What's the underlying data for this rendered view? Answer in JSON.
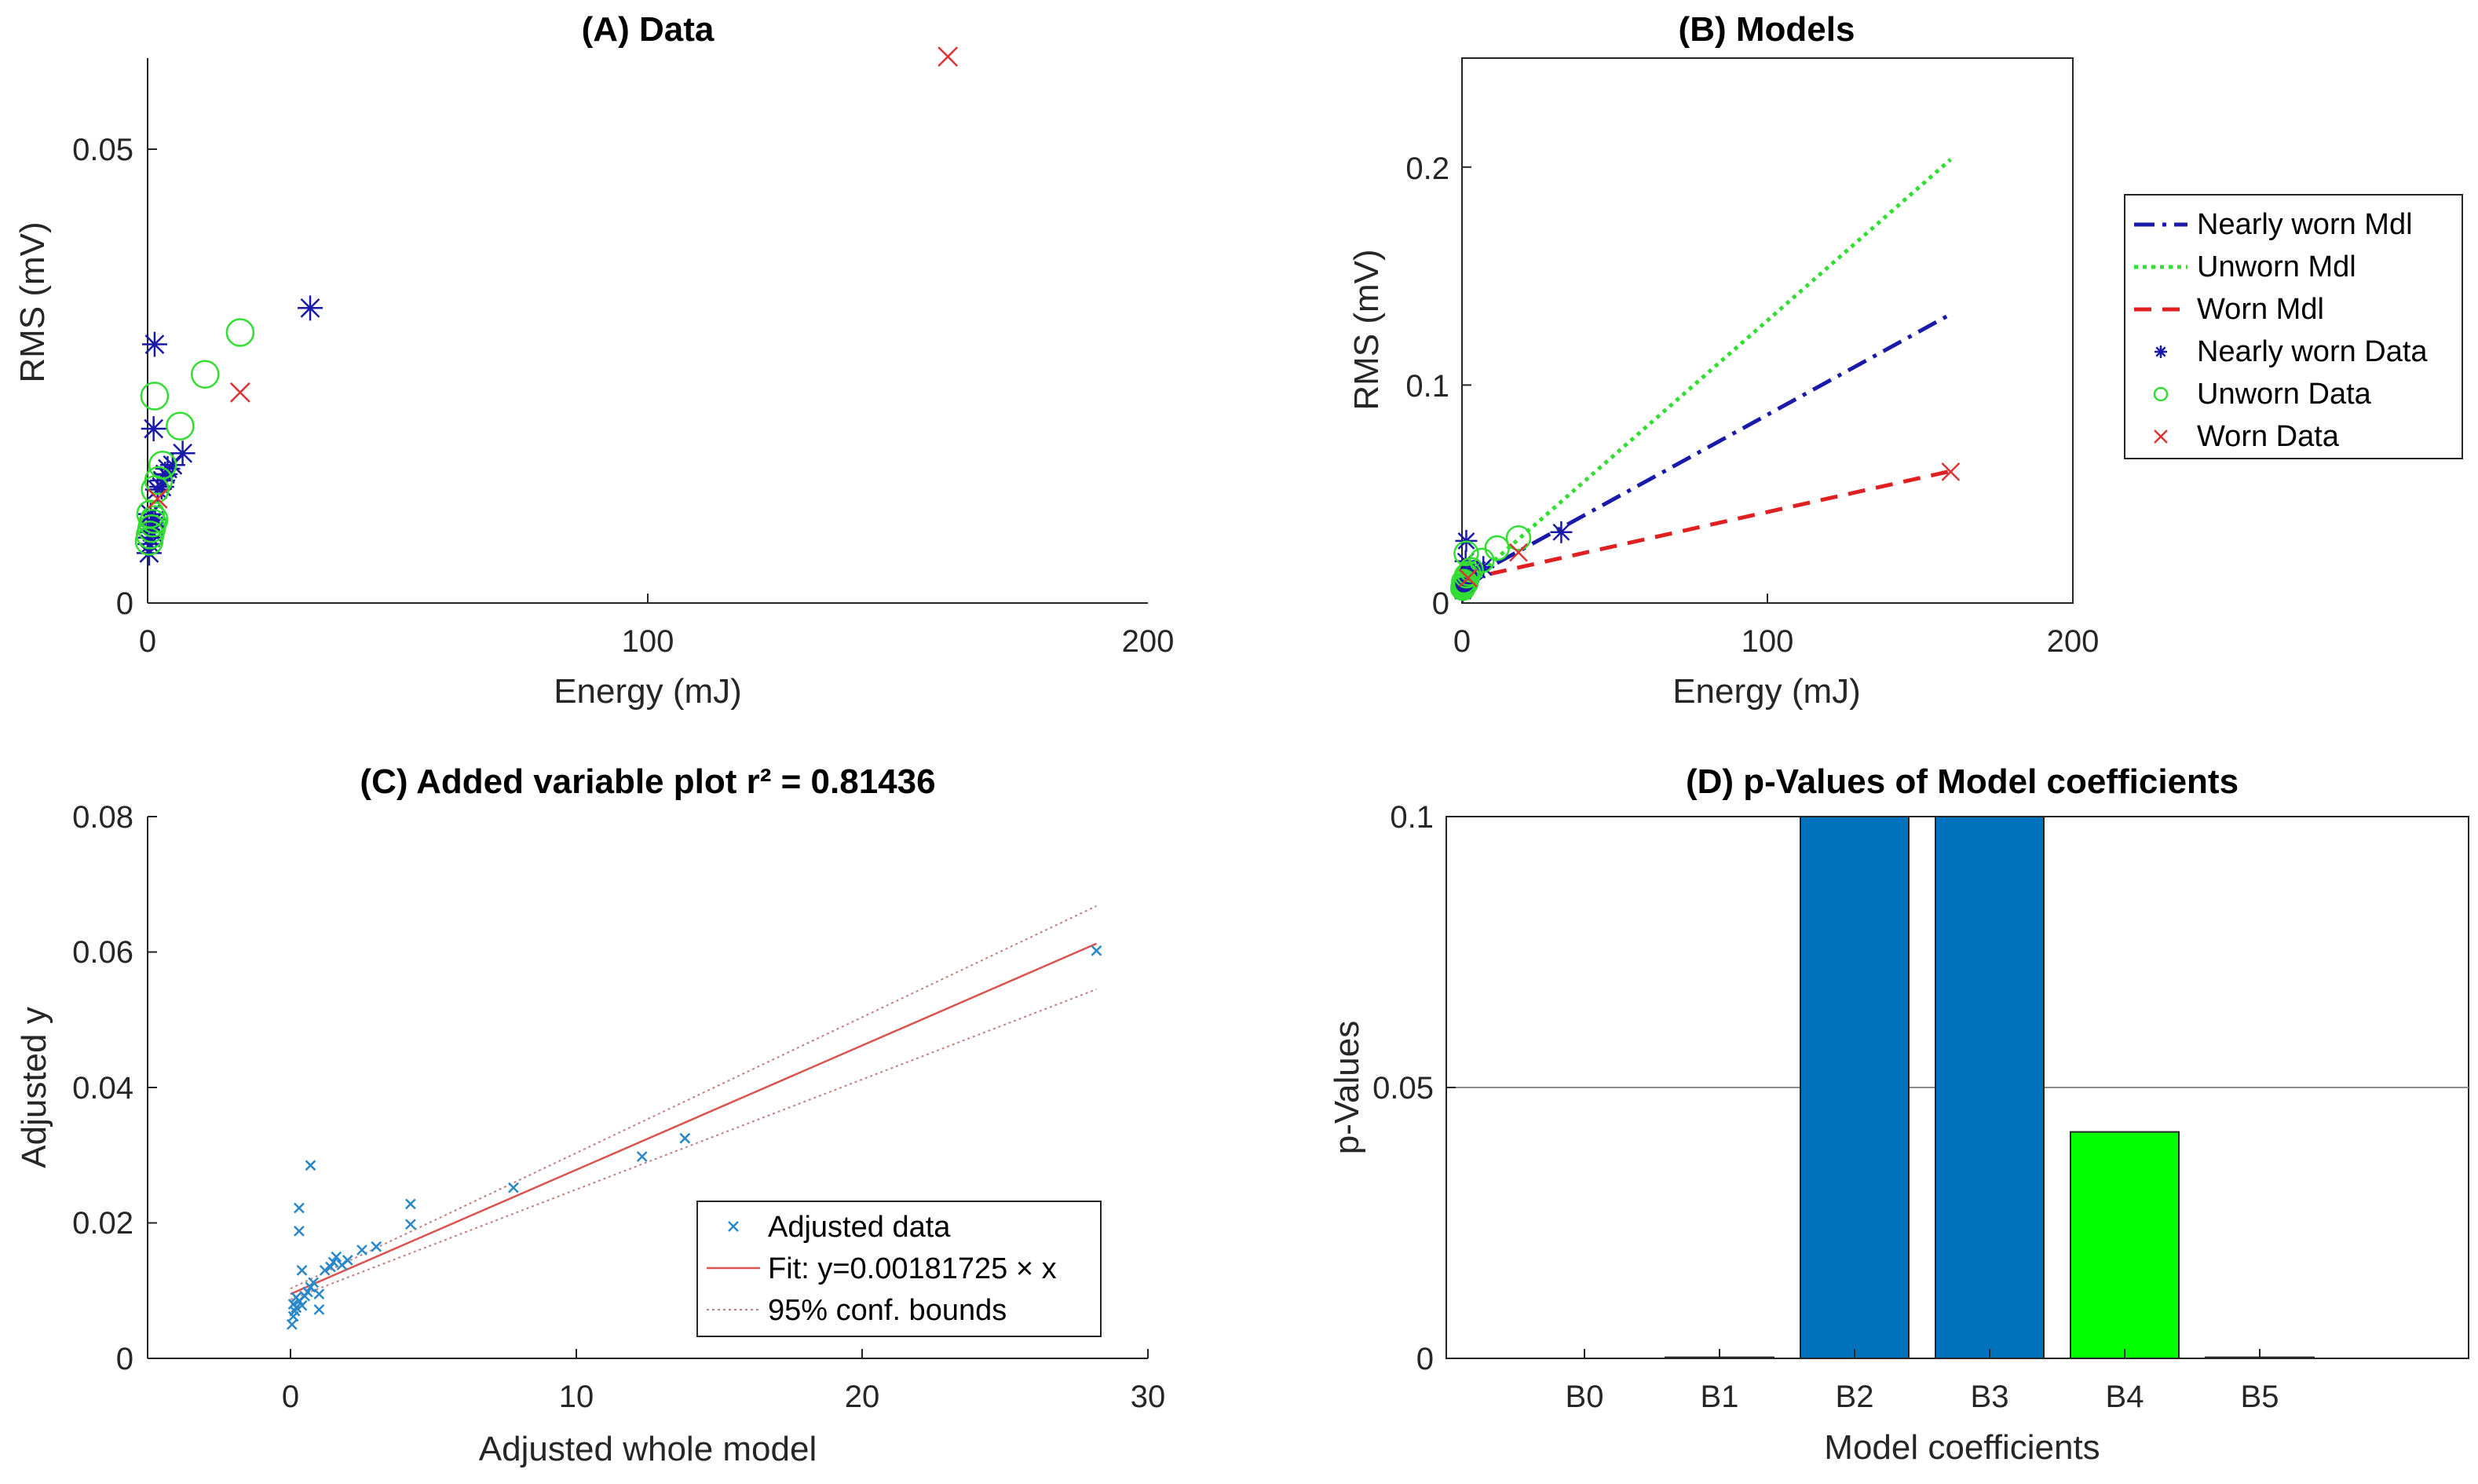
{
  "chart_data": [
    {
      "id": "A",
      "type": "scatter",
      "title": "(A) Data",
      "xlabel": "Energy (mJ)",
      "ylabel": "RMS (mV)",
      "xlim": [
        0,
        200
      ],
      "ylim": [
        0,
        0.06
      ],
      "xticks": [
        "0",
        "100",
        "200"
      ],
      "yticks": [
        "0",
        "0.05"
      ],
      "series": [
        {
          "name": "Nearly worn Data",
          "marker": "asterisk",
          "color": "#1a1aa8",
          "points": [
            [
              0.3,
              0.0055
            ],
            [
              0.5,
              0.0065
            ],
            [
              0.6,
              0.0072
            ],
            [
              0.9,
              0.0078
            ],
            [
              1.2,
              0.0085
            ],
            [
              0.8,
              0.0088
            ],
            [
              1.5,
              0.0092
            ],
            [
              0.6,
              0.0098
            ],
            [
              2.0,
              0.0125
            ],
            [
              2.8,
              0.0128
            ],
            [
              3.0,
              0.0135
            ],
            [
              3.5,
              0.0142
            ],
            [
              4.0,
              0.0148
            ],
            [
              5.0,
              0.0152
            ],
            [
              7.0,
              0.0165
            ],
            [
              1.2,
              0.0192
            ],
            [
              1.4,
              0.0285
            ],
            [
              32.5,
              0.0325
            ]
          ]
        },
        {
          "name": "Unworn Data",
          "marker": "circle",
          "color": "#33dd33",
          "points": [
            [
              0.3,
              0.0068
            ],
            [
              0.5,
              0.0075
            ],
            [
              0.8,
              0.0082
            ],
            [
              1.0,
              0.0088
            ],
            [
              1.3,
              0.0092
            ],
            [
              0.6,
              0.0098
            ],
            [
              1.5,
              0.0125
            ],
            [
              2.2,
              0.0135
            ],
            [
              3.0,
              0.0152
            ],
            [
              6.5,
              0.0195
            ],
            [
              1.4,
              0.0228
            ],
            [
              11.5,
              0.0252
            ],
            [
              18.5,
              0.0298
            ]
          ]
        },
        {
          "name": "Worn Data",
          "marker": "x",
          "color": "#dd3333",
          "points": [
            [
              2.0,
              0.0115
            ],
            [
              18.5,
              0.0232
            ],
            [
              160.0,
              0.0602
            ]
          ]
        }
      ]
    },
    {
      "id": "B",
      "type": "line",
      "title": "(B) Models",
      "xlabel": "Energy (mJ)",
      "ylabel": "RMS (mV)",
      "xlim": [
        0,
        200
      ],
      "ylim": [
        0,
        0.25
      ],
      "xticks": [
        "0",
        "100",
        "200"
      ],
      "yticks": [
        "0",
        "0.1",
        "0.2"
      ],
      "lines": [
        {
          "name": "Nearly worn Mdl",
          "style": "dashdot",
          "color": "#1a1aaa",
          "x": [
            0,
            160
          ],
          "y": [
            0.0095,
            0.1325
          ]
        },
        {
          "name": "Unworn Mdl",
          "style": "dotted",
          "color": "#33dd33",
          "x": [
            0,
            160
          ],
          "y": [
            0.0065,
            0.2035
          ]
        },
        {
          "name": "Worn Mdl",
          "style": "dashed",
          "color": "#e02020",
          "x": [
            0,
            160
          ],
          "y": [
            0.0105,
            0.0605
          ]
        }
      ],
      "legend": {
        "placement": "outside-right",
        "entries": [
          "Nearly worn Mdl",
          "Unworn Mdl",
          "Worn Mdl",
          "Nearly worn Data",
          "Unworn Data",
          "Worn Data"
        ]
      }
    },
    {
      "id": "C",
      "type": "scatter",
      "title": "(C) Added variable plot r² = 0.81436",
      "xlabel": "Adjusted whole model",
      "ylabel": "Adjusted y",
      "xlim": [
        -5,
        30
      ],
      "ylim": [
        0,
        0.08
      ],
      "xticks": [
        "0",
        "10",
        "20",
        "30"
      ],
      "yticks": [
        "0",
        "0.02",
        "0.04",
        "0.06",
        "0.08"
      ],
      "points": [
        [
          0.05,
          0.005
        ],
        [
          0.1,
          0.0062
        ],
        [
          0.15,
          0.007
        ],
        [
          0.2,
          0.0075
        ],
        [
          0.1,
          0.008
        ],
        [
          0.3,
          0.0085
        ],
        [
          0.2,
          0.009
        ],
        [
          0.4,
          0.0078
        ],
        [
          0.5,
          0.0092
        ],
        [
          0.6,
          0.0098
        ],
        [
          0.7,
          0.0105
        ],
        [
          0.8,
          0.0112
        ],
        [
          1.0,
          0.0095
        ],
        [
          1.0,
          0.0072
        ],
        [
          1.2,
          0.013
        ],
        [
          1.4,
          0.0135
        ],
        [
          1.5,
          0.0142
        ],
        [
          1.6,
          0.015
        ],
        [
          1.8,
          0.0138
        ],
        [
          2.0,
          0.0145
        ],
        [
          2.5,
          0.016
        ],
        [
          3.0,
          0.0165
        ],
        [
          0.4,
          0.013
        ],
        [
          0.3,
          0.0188
        ],
        [
          0.3,
          0.0222
        ],
        [
          0.7,
          0.0285
        ],
        [
          4.2,
          0.0228
        ],
        [
          4.2,
          0.0198
        ],
        [
          7.8,
          0.0252
        ],
        [
          12.3,
          0.0298
        ],
        [
          13.8,
          0.0325
        ],
        [
          28.2,
          0.0602
        ]
      ],
      "fit": {
        "slope": 0.00181725,
        "intercept": 0.0095,
        "x": [
          0,
          28.2
        ]
      },
      "conf_bounds": {
        "upper_end": 0.0668,
        "lower_end": 0.0545,
        "start": 0.0095
      },
      "legend": {
        "placement": "bottom-right",
        "entries": [
          "Adjusted data",
          "Fit: y=0.00181725 × x",
          "95% conf. bounds"
        ]
      }
    },
    {
      "id": "D",
      "type": "bar",
      "title": "(D) p-Values of Model coefficients",
      "xlabel": "Model coefficients",
      "ylabel": "p-Values",
      "ylim": [
        0,
        0.1
      ],
      "yticks": [
        "0",
        "0.05",
        "0.1"
      ],
      "categories": [
        "B0",
        "B1",
        "B2",
        "B3",
        "B4",
        "B5"
      ],
      "values": [
        0,
        0.0002,
        0.1,
        0.1,
        0.0418,
        0.0002
      ],
      "bar_colors": [
        "#0072bd",
        "#0072bd",
        "#0072bd",
        "#0072bd",
        "#00ff00",
        "#0072bd"
      ],
      "threshold": 0.05
    }
  ]
}
